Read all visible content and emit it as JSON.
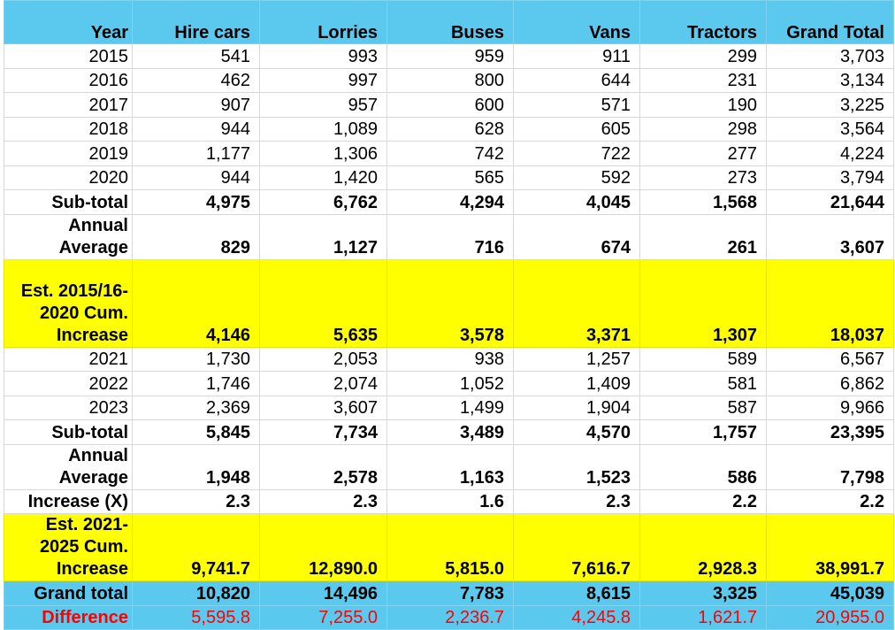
{
  "headers": [
    "Year",
    "Hire cars",
    "Lorries",
    "Buses",
    "Vans",
    "Tractors",
    "Grand Total"
  ],
  "rows_a": [
    [
      "2015",
      "541",
      "993",
      "959",
      "911",
      "299",
      "3,703"
    ],
    [
      "2016",
      "462",
      "997",
      "800",
      "644",
      "231",
      "3,134"
    ],
    [
      "2017",
      "907",
      "957",
      "600",
      "571",
      "190",
      "3,225"
    ],
    [
      "2018",
      "944",
      "1,089",
      "628",
      "605",
      "298",
      "3,564"
    ],
    [
      "2019",
      "1,177",
      "1,306",
      "742",
      "722",
      "277",
      "4,224"
    ],
    [
      "2020",
      "944",
      "1,420",
      "565",
      "592",
      "273",
      "3,794"
    ]
  ],
  "subtotal_a": [
    "Sub-total",
    "4,975",
    "6,762",
    "4,294",
    "4,045",
    "1,568",
    "21,644"
  ],
  "average_a": [
    "Annual Average",
    "829",
    "1,127",
    "716",
    "674",
    "261",
    "3,607"
  ],
  "est_a": [
    "Est. 2015/16-2020 Cum. Increase",
    "4,146",
    "5,635",
    "3,578",
    "3,371",
    "1,307",
    "18,037"
  ],
  "rows_b": [
    [
      "2021",
      "1,730",
      "2,053",
      "938",
      "1,257",
      "589",
      "6,567"
    ],
    [
      "2022",
      "1,746",
      "2,074",
      "1,052",
      "1,409",
      "581",
      "6,862"
    ],
    [
      "2023",
      "2,369",
      "3,607",
      "1,499",
      "1,904",
      "587",
      "9,966"
    ]
  ],
  "subtotal_b": [
    "Sub-total",
    "5,845",
    "7,734",
    "3,489",
    "4,570",
    "1,757",
    "23,395"
  ],
  "average_b": [
    "Annual Average",
    "1,948",
    "2,578",
    "1,163",
    "1,523",
    "586",
    "7,798"
  ],
  "increase_x": [
    "Increase (X)",
    "2.3",
    "2.3",
    "1.6",
    "2.3",
    "2.2",
    "2.2"
  ],
  "est_b": [
    "Est. 2021-2025 Cum. Increase",
    "9,741.7",
    "12,890.0",
    "5,815.0",
    "7,616.7",
    "2,928.3",
    "38,991.7"
  ],
  "grand_total": [
    "Grand total",
    "10,820",
    "14,496",
    "7,783",
    "8,615",
    "3,325",
    "45,039"
  ],
  "difference": [
    "Difference",
    "5,595.8",
    "7,255.0",
    "2,236.7",
    "4,245.8",
    "1,621.7",
    "20,955.0"
  ],
  "colors": {
    "header_bg": "#5bc8ee",
    "highlight_bg": "#ffff00",
    "difference_text": "#ff0000"
  }
}
